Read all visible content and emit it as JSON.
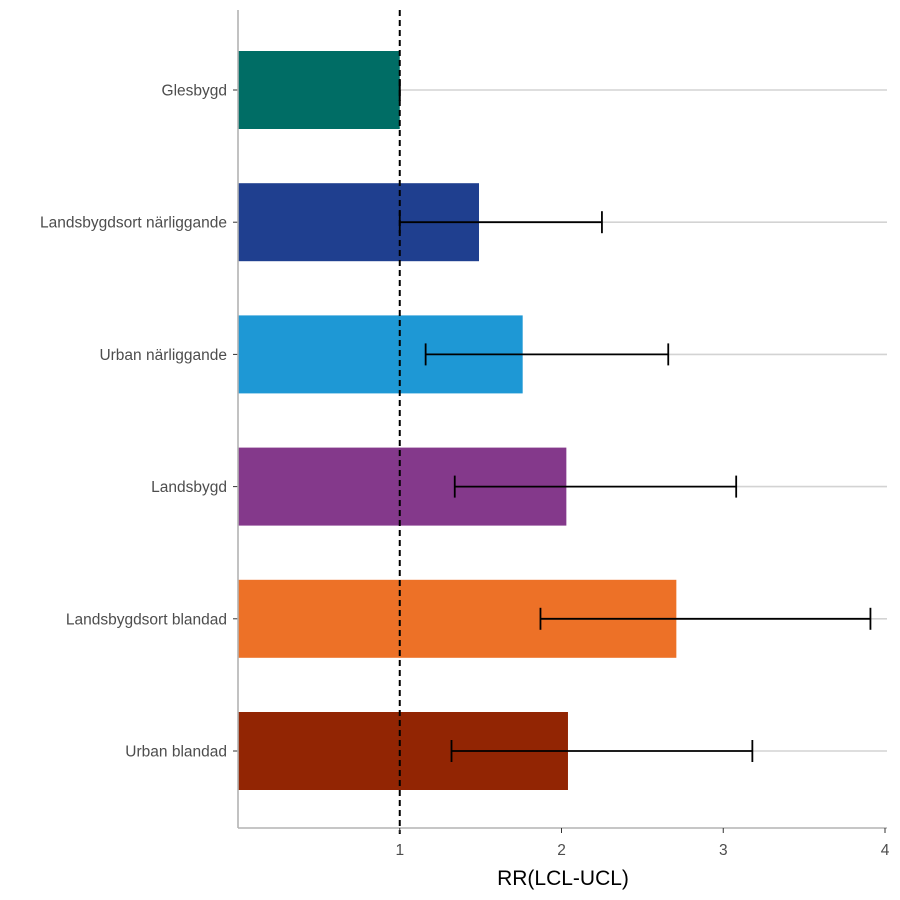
{
  "chart_data": {
    "type": "bar",
    "orientation": "horizontal",
    "categories": [
      "Glesbygd",
      "Landsbygdsort närliggande",
      "Urban närliggande",
      "Landsbygd",
      "Landsbygdsort blandad",
      "Urban blandad"
    ],
    "values": [
      1.0,
      1.49,
      1.76,
      2.03,
      2.71,
      2.04
    ],
    "lcl": [
      1.0,
      1.0,
      1.16,
      1.34,
      1.87,
      1.32
    ],
    "ucl": [
      1.0,
      2.25,
      2.66,
      3.08,
      3.91,
      3.18
    ],
    "colors": [
      "#006d65",
      "#1f3f8f",
      "#1e98d5",
      "#84398b",
      "#ed7127",
      "#922503"
    ],
    "reference_line": 1,
    "xlim": [
      0,
      4
    ],
    "xticks": [
      1,
      2,
      3,
      4
    ],
    "xlabel": "RR(LCL-UCL)",
    "ylabel": "",
    "title": "",
    "grid": "horizontal major lines",
    "legend": "none"
  }
}
